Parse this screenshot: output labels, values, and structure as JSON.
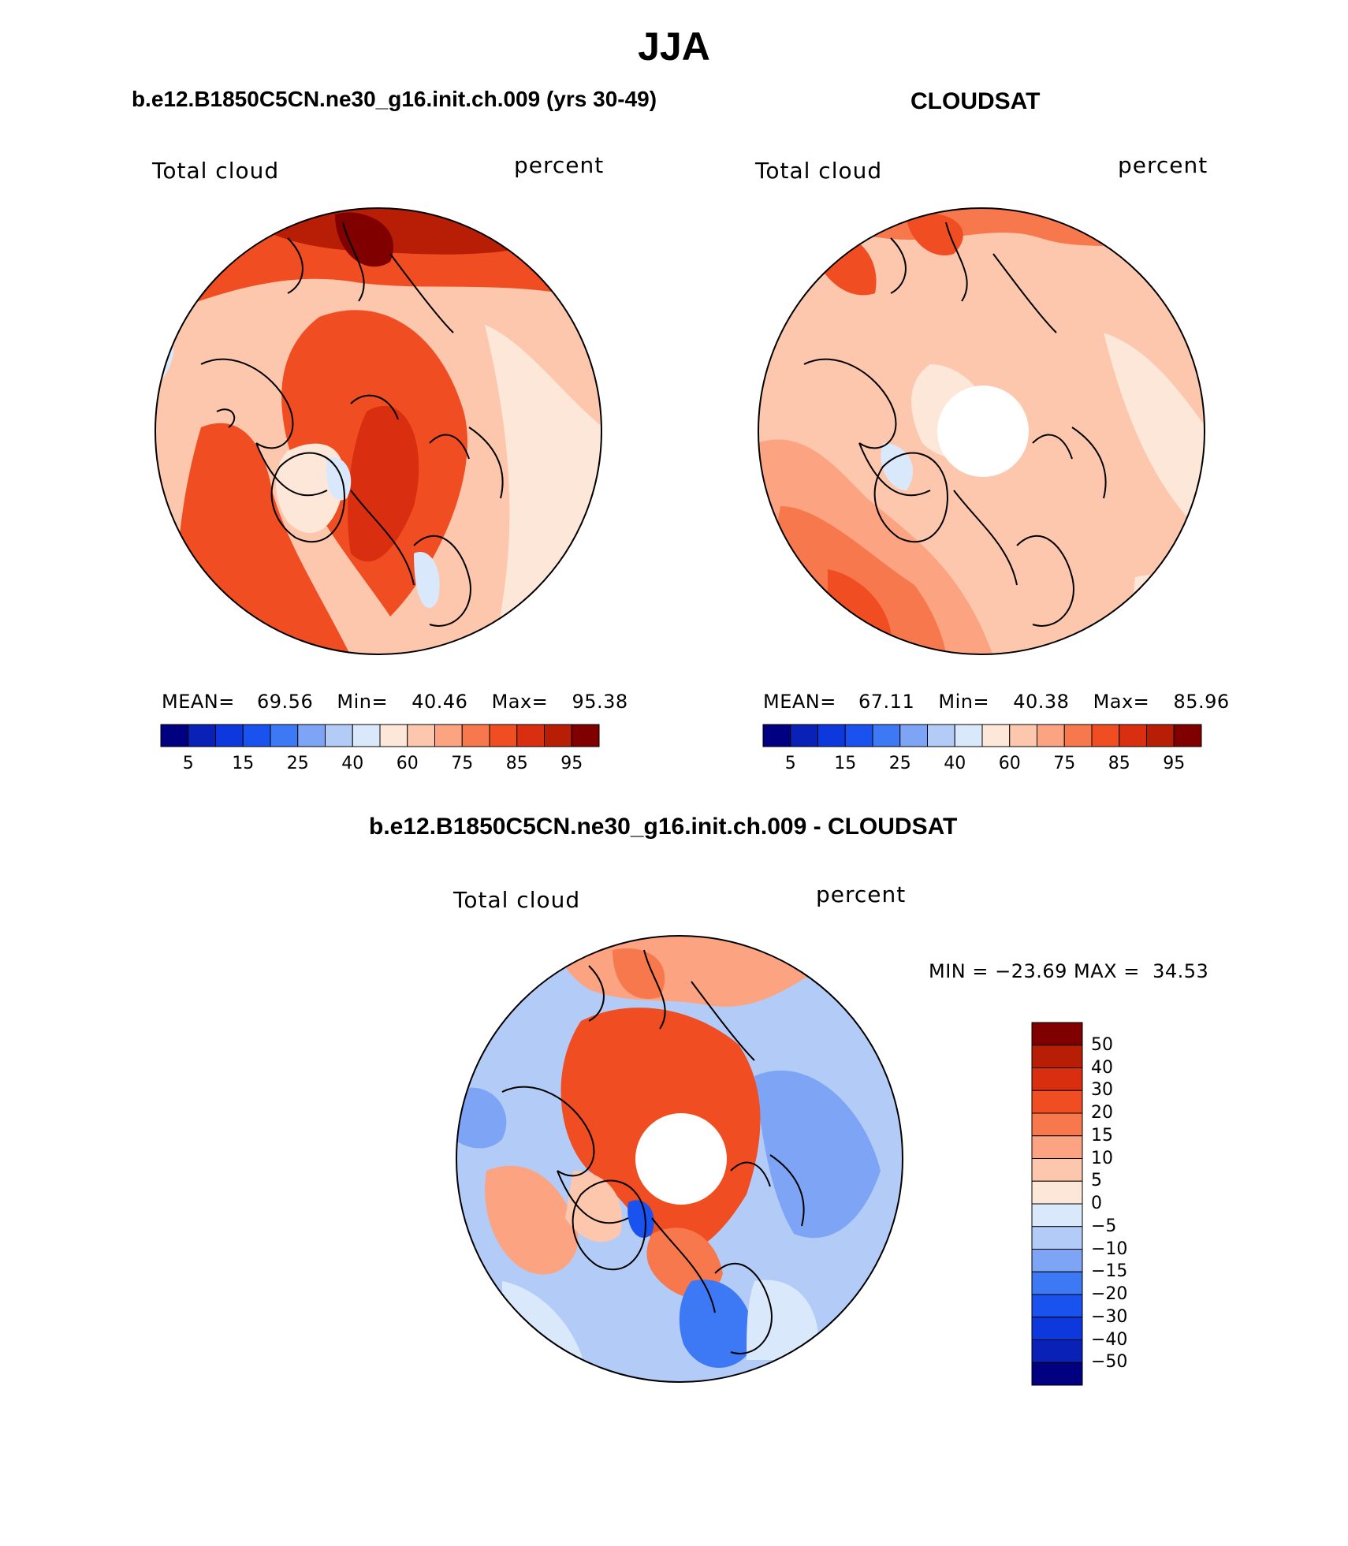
{
  "title": "JJA",
  "colors": {
    "warm": [
      "#fde7d8",
      "#fcc7ad",
      "#fca482",
      "#f7784d",
      "#f04e22",
      "#d92f10",
      "#b81e06",
      "#800000"
    ],
    "cool": [
      "#000080",
      "#0a21b8",
      "#0d38dd",
      "#1a52f0",
      "#3d78f5",
      "#7ea4f5",
      "#b3cbf7",
      "#dae8fb"
    ],
    "diff_scale": [
      "#800000",
      "#b81e06",
      "#d92f10",
      "#f04e22",
      "#f7784d",
      "#fca482",
      "#fcc7ad",
      "#fde7d8",
      "#dae8fb",
      "#b3cbf7",
      "#7ea4f5",
      "#3d78f5",
      "#1a52f0",
      "#0d38dd",
      "#0a21b8",
      "#000080"
    ]
  },
  "panels": [
    {
      "title": "b.e12.B1850C5CN.ne30_g16.init.ch.009 (yrs 30-49)",
      "left_label": "Total cloud",
      "right_label": "percent",
      "mean_label": "MEAN=",
      "mean": "69.56",
      "min_label": "Min=",
      "min": "40.46",
      "max_label": "Max=",
      "max": "95.38",
      "colorbar_labels": [
        "5",
        "15",
        "25",
        "40",
        "60",
        "75",
        "85",
        "95"
      ]
    },
    {
      "title": "CLOUDSAT",
      "left_label": "Total cloud",
      "right_label": "percent",
      "mean_label": "MEAN=",
      "mean": "67.11",
      "min_label": "Min=",
      "min": "40.38",
      "max_label": "Max=",
      "max": "85.96",
      "colorbar_labels": [
        "5",
        "15",
        "25",
        "40",
        "60",
        "75",
        "85",
        "95"
      ]
    }
  ],
  "difference": {
    "title": "b.e12.B1850C5CN.ne30_g16.init.ch.009 - CLOUDSAT",
    "left_label": "Total cloud",
    "right_label": "percent",
    "minmax_text": "MIN = −23.69 MAX =  34.53",
    "colorbar_labels": [
      "50",
      "40",
      "30",
      "20",
      "15",
      "10",
      "5",
      "0",
      "−5",
      "−10",
      "−15",
      "−20",
      "−30",
      "−40",
      "−50"
    ]
  }
}
